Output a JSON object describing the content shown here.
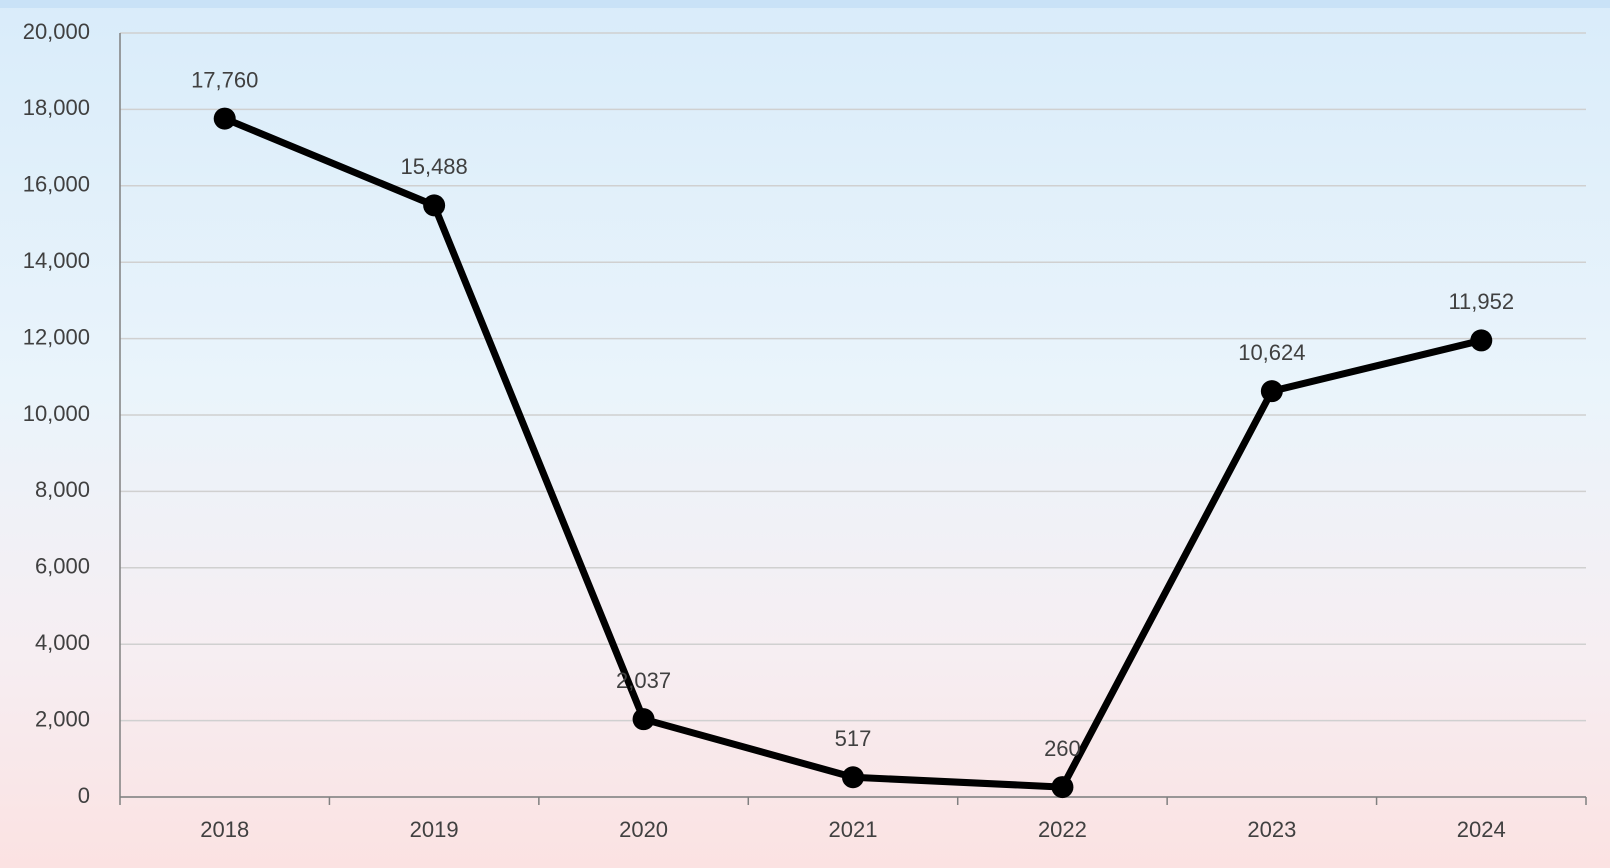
{
  "chart_data": {
    "type": "line",
    "categories": [
      "2018",
      "2019",
      "2020",
      "2021",
      "2022",
      "2023",
      "2024"
    ],
    "values": [
      17760,
      15488,
      2037,
      517,
      260,
      10624,
      11952
    ],
    "value_labels": [
      "17,760",
      "15,488",
      "2,037",
      "517",
      "260",
      "10,624",
      "11,952"
    ],
    "color": "#000000",
    "ylim": [
      0,
      20000
    ],
    "yticks": [
      0,
      {
        "value": 2000,
        "label": "2,000"
      },
      {
        "value": 4000,
        "label": "4,000"
      },
      {
        "value": 6000,
        "label": "6,000"
      },
      {
        "value": 8000,
        "label": "8,000"
      },
      {
        "value": 10000,
        "label": "10,000"
      },
      {
        "value": 12000,
        "label": "12,000"
      },
      {
        "value": 14000,
        "label": "14,000"
      },
      {
        "value": 16000,
        "label": "16,000"
      },
      {
        "value": 18000,
        "label": "18,000"
      },
      {
        "value": 20000,
        "label": "20,000"
      }
    ],
    "grid": true
  }
}
